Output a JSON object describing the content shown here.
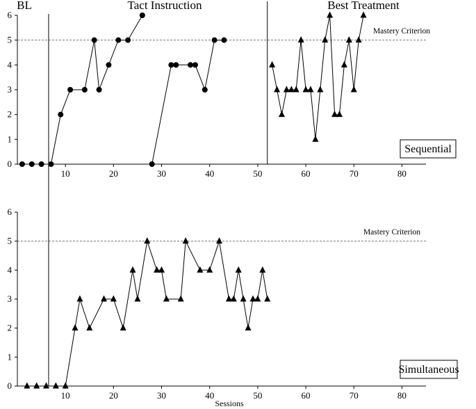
{
  "chart_data": {
    "type": "line",
    "xlabel": "Sessions",
    "xlim": [
      0,
      85
    ],
    "xticks": [
      10,
      20,
      30,
      40,
      50,
      60,
      70,
      80
    ],
    "ylim": [
      0,
      6
    ],
    "yticks": [
      0,
      1,
      2,
      3,
      4,
      5,
      6
    ],
    "phase_labels": [
      "BL",
      "Tact Instruction",
      "Best Treatment"
    ],
    "phase_change_sessions": [
      6.5,
      52
    ],
    "criterion_value": 5,
    "criterion_label": "Mastery Criterion",
    "panels": [
      {
        "label": "Sequential",
        "series": [
          {
            "marker": "circle",
            "x": [
              1,
              3,
              5,
              7,
              9,
              11,
              14,
              16,
              17,
              19,
              21,
              23,
              26
            ],
            "y": [
              0,
              0,
              0,
              0,
              2,
              3,
              3,
              5,
              3,
              4,
              5,
              5,
              6
            ]
          },
          {
            "marker": "circle",
            "x": [
              28,
              32,
              33,
              36,
              37,
              39,
              41,
              43
            ],
            "y": [
              0,
              4,
              4,
              4,
              4,
              3,
              5,
              5
            ]
          },
          {
            "marker": "triangle",
            "x": [
              53,
              54,
              55,
              56,
              57,
              58,
              59,
              60,
              61,
              62,
              63,
              64,
              65,
              66,
              67,
              68,
              69,
              70,
              71,
              72
            ],
            "y": [
              4,
              3,
              2,
              3,
              3,
              3,
              5,
              3,
              3,
              1,
              3,
              5,
              6,
              2,
              2,
              4,
              5,
              3,
              5,
              6
            ]
          }
        ]
      },
      {
        "label": "Simultaneous",
        "series": [
          {
            "marker": "triangle",
            "x": [
              2,
              4,
              6,
              8,
              10,
              12,
              13,
              15,
              18,
              20,
              22,
              24,
              25,
              27,
              29,
              30,
              31,
              34,
              35,
              38,
              40,
              42,
              44,
              45,
              46,
              47,
              48,
              49,
              50,
              51,
              52
            ],
            "y": [
              0,
              0,
              0,
              0,
              0,
              2,
              3,
              2,
              3,
              3,
              2,
              4,
              3,
              5,
              4,
              4,
              3,
              3,
              5,
              4,
              4,
              5,
              3,
              3,
              4,
              3,
              2,
              3,
              3,
              4,
              3
            ]
          }
        ]
      }
    ]
  }
}
